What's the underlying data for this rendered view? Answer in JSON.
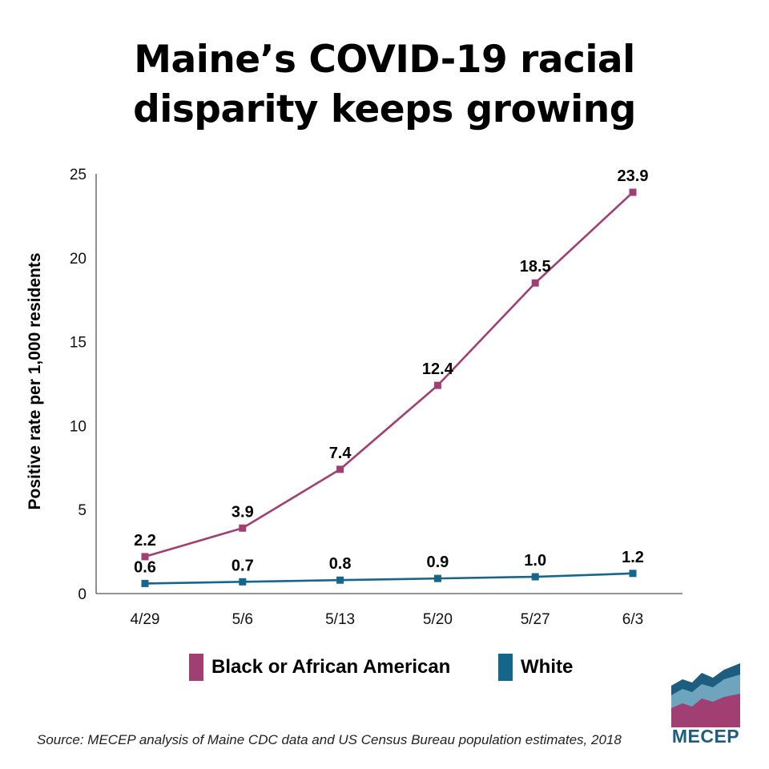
{
  "header": {
    "title_line1": "Maine’s COVID-19 racial",
    "title_line2": "disparity keeps growing"
  },
  "chart_data": {
    "type": "line",
    "title": "Maine’s COVID-19 racial disparity keeps growing",
    "xlabel": "",
    "ylabel": "Positive rate per 1,000 residents",
    "ylim": [
      0,
      25
    ],
    "yticks": [
      0,
      5,
      10,
      15,
      20,
      25
    ],
    "categories": [
      "4/29",
      "5/6",
      "5/13",
      "5/20",
      "5/27",
      "6/3"
    ],
    "grid": false,
    "legend_position": "bottom",
    "series": [
      {
        "name": "Black or African American",
        "color": "#a13f73",
        "values": [
          2.2,
          3.9,
          7.4,
          12.4,
          18.5,
          23.9
        ],
        "labels": [
          "2.2",
          "3.9",
          "7.4",
          "12.4",
          "18.5",
          "23.9"
        ]
      },
      {
        "name": "White",
        "color": "#16668c",
        "values": [
          0.6,
          0.7,
          0.8,
          0.9,
          1.0,
          1.2
        ],
        "labels": [
          "0.6",
          "0.7",
          "0.8",
          "0.9",
          "1.0",
          "1.2"
        ]
      }
    ]
  },
  "legend": {
    "black_label": "Black or African American",
    "white_label": "White"
  },
  "footer": {
    "source": "Source: MECEP analysis of Maine CDC data and US Census Bureau population estimates, 2018",
    "logo_text": "MECEP"
  },
  "colors": {
    "black_series": "#a13f73",
    "white_series": "#16668c",
    "logo_dark": "#1c5d80",
    "logo_light": "#6ea4bd",
    "logo_magenta": "#a13f73"
  }
}
